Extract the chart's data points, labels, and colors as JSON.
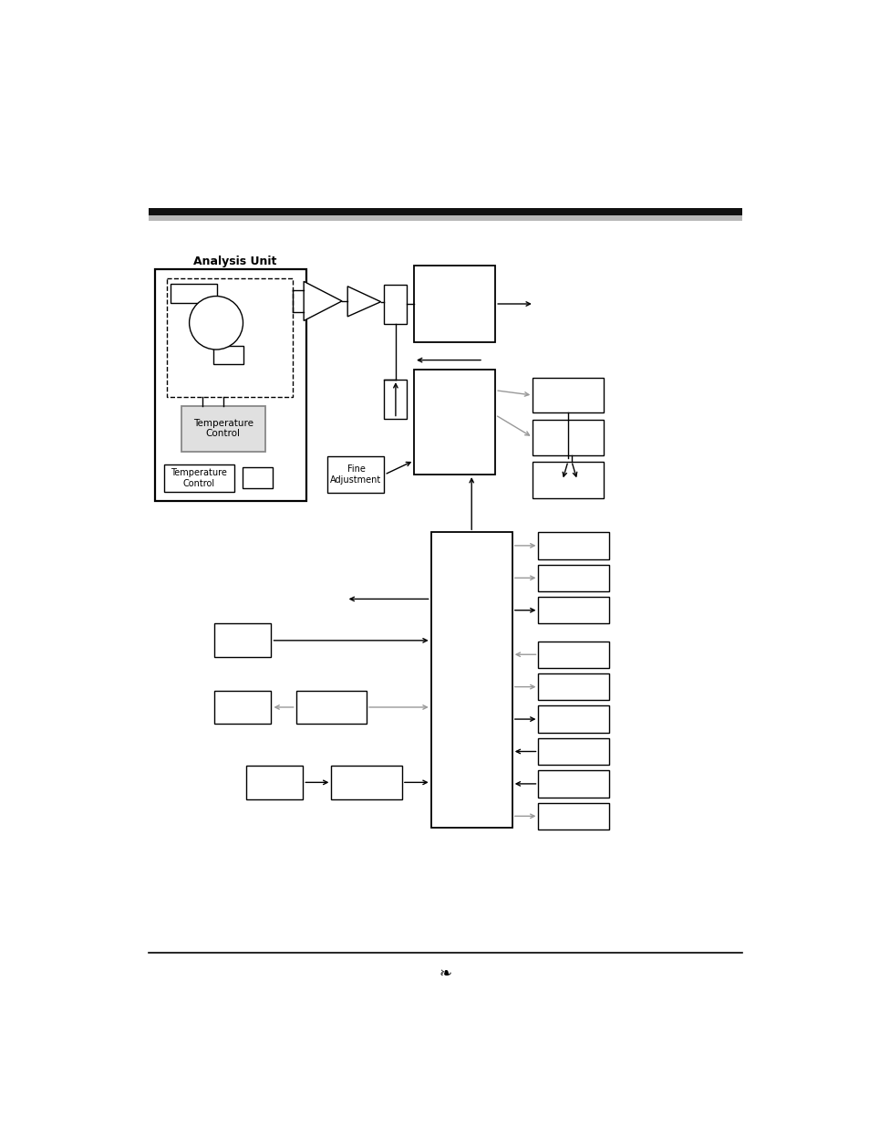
{
  "page_bg": "#ffffff",
  "analysis_unit_label": "Analysis Unit",
  "temp_control_label1": "Temperature\nControl",
  "temp_control_label2": "Temperature\nControl",
  "fine_adj_label": "Fine\nAdjustment",
  "arrow_gray": "#999999",
  "arrow_black": "#000000"
}
